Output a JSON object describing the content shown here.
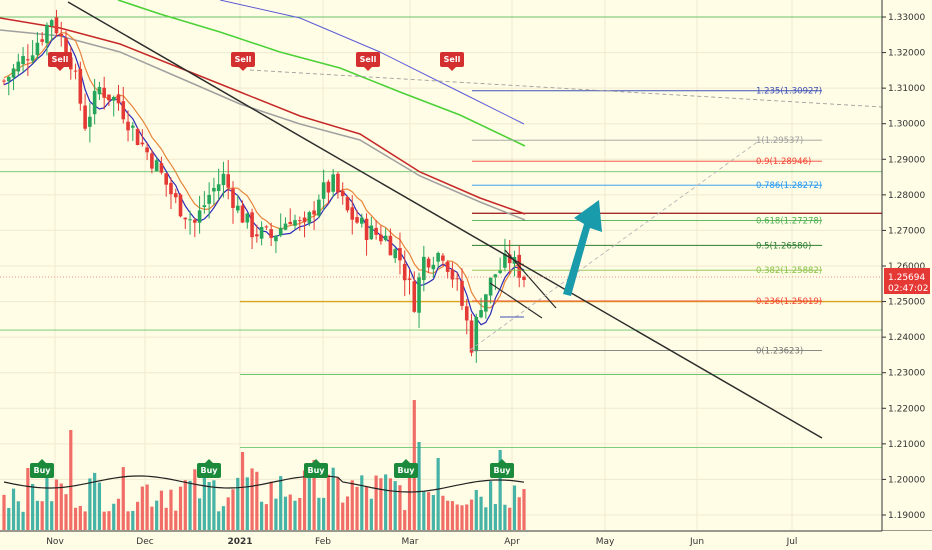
{
  "chart_data": {
    "type": "candlestick",
    "price_scale": {
      "ylim": [
        1.1853,
        1.3358
      ],
      "ticks": [
        "1.33000",
        "1.32000",
        "1.31000",
        "1.30000",
        "1.29000",
        "1.28000",
        "1.27000",
        "1.26000",
        "1.25000",
        "1.24000",
        "1.23000",
        "1.22000",
        "1.21000",
        "1.20000",
        "1.19000"
      ]
    },
    "time_axis": {
      "labels": [
        "Nov",
        "Dec",
        "2021",
        "Feb",
        "Mar",
        "Apr",
        "May",
        "Jun",
        "Jul"
      ]
    },
    "current_price": {
      "value": "1.25694",
      "timer": "02:47:02"
    },
    "fib_levels": [
      {
        "label": "1.235(1.30927)",
        "value": 1.30927,
        "color": "#3f51b5"
      },
      {
        "label": "1(1.29537)",
        "value": 1.29537,
        "color": "#9e9e9e"
      },
      {
        "label": "0.9(1.28946)",
        "value": 1.28946,
        "color": "#f44336"
      },
      {
        "label": "0.786(1.28272)",
        "value": 1.28272,
        "color": "#2196f3"
      },
      {
        "label": "0.618(1.27278)",
        "value": 1.27278,
        "color": "#4caf50"
      },
      {
        "label": "0.5(1.26580)",
        "value": 1.2658,
        "color": "#2e7d32"
      },
      {
        "label": "0.382(1.25882)",
        "value": 1.25882,
        "color": "#8bc34a"
      },
      {
        "label": "0.236(1.25019)",
        "value": 1.25019,
        "color": "#f44336"
      },
      {
        "label": "0(1.23623)",
        "value": 1.23623,
        "color": "#787878"
      }
    ],
    "horizontal_lines": [
      1.33,
      1.2865,
      1.2748,
      1.25,
      1.242,
      1.2295,
      1.209
    ],
    "signals": [
      {
        "text": "Sell",
        "type": "sell"
      },
      {
        "text": "Sell",
        "type": "sell"
      },
      {
        "text": "Sell",
        "type": "sell"
      },
      {
        "text": "Sell",
        "type": "sell"
      },
      {
        "text": "Buy",
        "type": "buy"
      },
      {
        "text": "Buy",
        "type": "buy"
      },
      {
        "text": "Buy",
        "type": "buy"
      },
      {
        "text": "Buy",
        "type": "buy"
      },
      {
        "text": "Buy",
        "type": "buy"
      }
    ],
    "grid": true,
    "colors": {
      "bull": "#26a65b",
      "bear": "#e53935",
      "vol_bull": "#26a69a",
      "vol_bear": "#ef5350",
      "ma_red": "#c62828",
      "ma_green": "#4cd137",
      "ma_gray": "#a0a0a0",
      "ma_orange": "#e8843a",
      "ma_blue": "#2b2bb8",
      "trend": "#2c2c2c",
      "arrow": "#1a9bab"
    }
  }
}
